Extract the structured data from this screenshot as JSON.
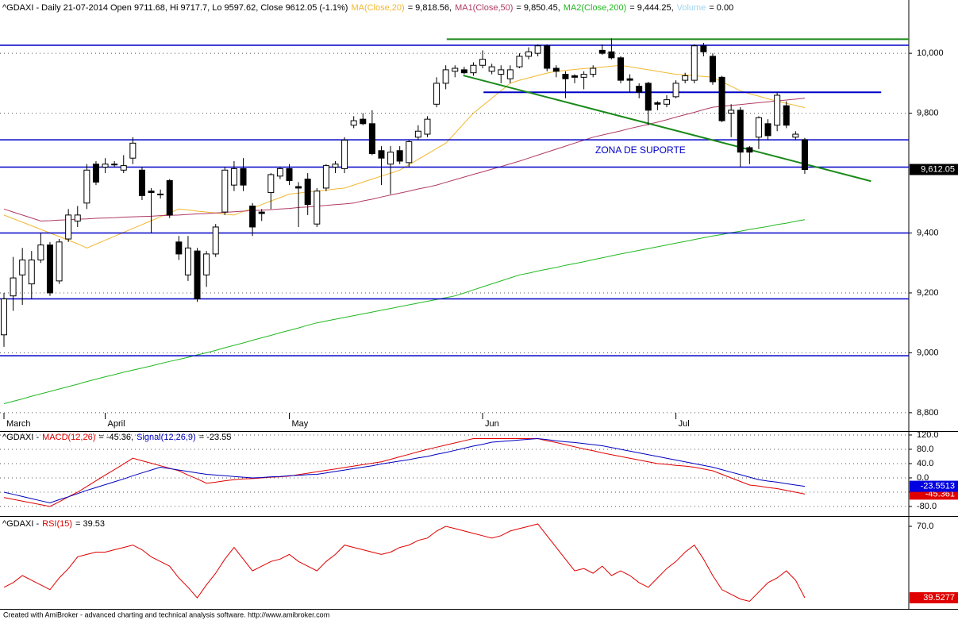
{
  "chart_data": [
    {
      "type": "candlestick",
      "title": "^GDAXI - Daily 21-07-2014 Open 9711.68, Hi 9717.7, Lo 9597.62, Close 9612.05 (-1.1%)",
      "categories": [
        "March",
        null,
        null,
        null,
        null,
        null,
        null,
        null,
        null,
        null,
        null,
        "April",
        null,
        null,
        null,
        null,
        null,
        null,
        null,
        null,
        null,
        null,
        null,
        null,
        null,
        null,
        null,
        null,
        null,
        null,
        null,
        "May",
        null,
        null,
        null,
        null,
        null,
        null,
        null,
        null,
        null,
        null,
        null,
        null,
        null,
        null,
        null,
        null,
        null,
        null,
        null,
        null,
        "Jun",
        null,
        null,
        null,
        null,
        null,
        null,
        null,
        null,
        null,
        null,
        null,
        null,
        null,
        null,
        null,
        null,
        null,
        null,
        null,
        null,
        "Jul",
        null,
        null,
        null,
        null,
        null,
        null,
        null,
        null,
        null,
        null,
        null,
        null,
        null,
        null
      ],
      "open": [
        9060,
        9190,
        9260,
        9230,
        9310,
        9360,
        9240,
        9380,
        9440,
        9500,
        9630,
        9620,
        9630,
        9610,
        9650,
        9610,
        9540,
        9530,
        9575,
        9370,
        9260,
        9340,
        9260,
        9330,
        9470,
        9560,
        9615,
        9490,
        9470,
        9535,
        9590,
        9615,
        9555,
        9580,
        9430,
        9550,
        9620,
        9615,
        9760,
        9780,
        9765,
        9675,
        9630,
        9675,
        9635,
        9720,
        9730,
        9830,
        9900,
        9940,
        9945,
        9935,
        9960,
        9940,
        9930,
        9915,
        9955,
        9990,
        10000,
        10025,
        9950,
        9930,
        9925,
        9920,
        9930,
        10010,
        10005,
        9985,
        9915,
        9890,
        9900,
        9835,
        9830,
        9855,
        9910,
        9910,
        10025,
        9990,
        9920,
        9800,
        9810,
        9685,
        9720,
        9765,
        9760,
        9825,
        9720,
        9711.68
      ],
      "high": [
        9200,
        9320,
        9350,
        9340,
        9400,
        9370,
        9380,
        9480,
        9490,
        9630,
        9640,
        9650,
        9640,
        9660,
        9720,
        9620,
        9550,
        9545,
        9580,
        9390,
        9390,
        9350,
        9340,
        9430,
        9620,
        9640,
        9650,
        9500,
        9480,
        9600,
        9620,
        9630,
        9570,
        9600,
        9550,
        9630,
        9640,
        9720,
        9790,
        9800,
        9810,
        9690,
        9690,
        9690,
        9710,
        9760,
        9790,
        9920,
        9960,
        9960,
        9955,
        9970,
        10010,
        9965,
        9960,
        9960,
        10000,
        10020,
        10030,
        10030,
        9960,
        9940,
        9930,
        9940,
        9960,
        10030,
        10050,
        9990,
        9930,
        9900,
        9905,
        9840,
        9860,
        9910,
        9935,
        10030,
        10035,
        10000,
        9925,
        9830,
        9820,
        9690,
        9790,
        9780,
        9870,
        9840,
        9740,
        9717.7
      ],
      "low": [
        9020,
        9140,
        9160,
        9180,
        9300,
        9190,
        9230,
        9370,
        9420,
        9480,
        9560,
        9600,
        9620,
        9600,
        9630,
        9510,
        9400,
        9515,
        9450,
        9310,
        9240,
        9170,
        9220,
        9320,
        9460,
        9540,
        9540,
        9390,
        9440,
        9480,
        9580,
        9560,
        9420,
        9460,
        9420,
        9540,
        9600,
        9600,
        9750,
        9760,
        9660,
        9560,
        9530,
        9630,
        9620,
        9710,
        9720,
        9820,
        9880,
        9920,
        9930,
        9925,
        9950,
        9930,
        9900,
        9900,
        9950,
        9980,
        9990,
        9940,
        9920,
        9850,
        9900,
        9880,
        9920,
        9995,
        9980,
        9900,
        9870,
        9850,
        9760,
        9810,
        9820,
        9850,
        9900,
        9900,
        9990,
        9895,
        9770,
        9720,
        9620,
        9630,
        9680,
        9710,
        9740,
        9750,
        9710,
        9597.62
      ],
      "close": [
        9180,
        9250,
        9310,
        9310,
        9360,
        9200,
        9370,
        9460,
        9460,
        9610,
        9570,
        9630,
        9630,
        9625,
        9700,
        9525,
        9535,
        9528,
        9460,
        9330,
        9350,
        9180,
        9330,
        9420,
        9610,
        9615,
        9560,
        9420,
        9465,
        9595,
        9615,
        9575,
        9550,
        9495,
        9540,
        9625,
        9630,
        9710,
        9775,
        9765,
        9665,
        9650,
        9670,
        9640,
        9705,
        9740,
        9780,
        9900,
        9945,
        9950,
        9935,
        9960,
        9980,
        9955,
        9945,
        9945,
        9990,
        10005,
        10025,
        9950,
        9940,
        9915,
        9920,
        9930,
        9950,
        10000,
        9985,
        9910,
        9910,
        9870,
        9810,
        9830,
        9845,
        9900,
        9925,
        10025,
        10005,
        9905,
        9775,
        9810,
        9670,
        9670,
        9785,
        9725,
        9860,
        9760,
        9730,
        9612.05
      ],
      "last_price": {
        "value": 9612.05,
        "label": "9,612.05"
      },
      "series": [
        {
          "name": "MA(Close,20)",
          "legend_label": "= 9,818.56,",
          "color": "#f2b830",
          "values": [
            9460,
            9448,
            9436,
            9424,
            9412,
            9400,
            9388,
            9376,
            9364,
            9350,
            9363,
            9376,
            9389,
            9402,
            9415,
            9428,
            9441,
            9454,
            9467,
            9480,
            9477,
            9473,
            9470,
            9467,
            9463,
            9460,
            9472,
            9483,
            9495,
            9507,
            9518,
            9530,
            9533,
            9537,
            9540,
            9543,
            9547,
            9550,
            9560,
            9570,
            9580,
            9590,
            9600,
            9610,
            9628,
            9646,
            9664,
            9682,
            9700,
            9733,
            9767,
            9800,
            9825,
            9850,
            9875,
            9900,
            9910,
            9918,
            9926,
            9934,
            9940,
            9943,
            9946,
            9949,
            9951,
            9954,
            9957,
            9960,
            9955,
            9950,
            9945,
            9940,
            9935,
            9930,
            9928,
            9925,
            9923,
            9920,
            9905,
            9890,
            9875,
            9865,
            9857,
            9848,
            9840,
            9833,
            9826,
            9818.56
          ]
        },
        {
          "name": "MA1(Close,50)",
          "legend_label": "= 9,850.45,",
          "color": "#b03a66",
          "values": [
            9480,
            9470,
            9460,
            9450,
            9440,
            9441,
            9443,
            9444,
            9446,
            9447,
            9449,
            9450,
            9451,
            9453,
            9454,
            9455,
            9456,
            9458,
            9459,
            9460,
            9462,
            9464,
            9465,
            9467,
            9469,
            9471,
            9473,
            9475,
            9476,
            9478,
            9480,
            9482,
            9485,
            9487,
            9490,
            9492,
            9495,
            9497,
            9500,
            9507,
            9513,
            9520,
            9527,
            9533,
            9540,
            9547,
            9553,
            9560,
            9569,
            9578,
            9587,
            9596,
            9604,
            9613,
            9622,
            9631,
            9640,
            9650,
            9660,
            9670,
            9680,
            9690,
            9700,
            9710,
            9720,
            9727,
            9734,
            9741,
            9749,
            9756,
            9763,
            9770,
            9778,
            9787,
            9795,
            9803,
            9812,
            9820,
            9823,
            9826,
            9829,
            9832,
            9835,
            9838,
            9841,
            9844,
            9847,
            9850.45
          ]
        },
        {
          "name": "MA2(Close,200)",
          "legend_label": "= 9,444.25,",
          "color": "#22b822",
          "values": [
            8830,
            8838,
            8846,
            8855,
            8863,
            8871,
            8879,
            8887,
            8895,
            8904,
            8912,
            8920,
            8927,
            8935,
            8942,
            8949,
            8956,
            8964,
            8971,
            8978,
            8985,
            8993,
            9000,
            9008,
            9017,
            9025,
            9033,
            9042,
            9050,
            9058,
            9067,
            9075,
            9083,
            9092,
            9100,
            9106,
            9112,
            9118,
            9124,
            9130,
            9136,
            9142,
            9148,
            9154,
            9160,
            9166,
            9172,
            9178,
            9184,
            9190,
            9200,
            9210,
            9220,
            9230,
            9240,
            9250,
            9260,
            9266,
            9273,
            9279,
            9285,
            9292,
            9298,
            9304,
            9311,
            9317,
            9324,
            9330,
            9336,
            9342,
            9348,
            9354,
            9360,
            9366,
            9372,
            9378,
            9384,
            9390,
            9395,
            9401,
            9406,
            9412,
            9417,
            9422,
            9428,
            9433,
            9439,
            9444.25
          ]
        }
      ],
      "volume_legend": {
        "name": "Volume",
        "legend_label": "= 0.00",
        "color": "#9fd6ef"
      },
      "xlim": [
        -0.43,
        98.3
      ],
      "ylim": [
        8789,
        10125
      ],
      "yticks": [
        {
          "value": 10000,
          "label": "10,000"
        },
        {
          "value": 9800,
          "label": "9,800"
        },
        {
          "value": 9400,
          "label": "9,400"
        },
        {
          "value": 9200,
          "label": "9,200"
        },
        {
          "value": 9000,
          "label": "9,000"
        },
        {
          "value": 8800,
          "label": "8,800"
        }
      ],
      "grid": true,
      "hlines": [
        {
          "value": 10027,
          "color": "#0000c8"
        },
        {
          "value": 9711,
          "color": "#0000c8"
        },
        {
          "value": 9620,
          "color": "#0000c8"
        },
        {
          "value": 9400,
          "color": "#0000c8"
        },
        {
          "value": 9180,
          "color": "#0000c8"
        },
        {
          "value": 8990,
          "color": "#0000c8"
        }
      ],
      "segments": [
        {
          "from": [
            48.1,
            10047
          ],
          "to": [
            98.3,
            10047
          ],
          "color": "#1a8a1a"
        },
        {
          "from": [
            52.1,
            9870
          ],
          "to": [
            95.3,
            9870
          ],
          "color": "#0000c8"
        },
        {
          "from": [
            49.9,
            9926
          ],
          "to": [
            94.2,
            9573
          ],
          "color": "#1a8a1a"
        }
      ],
      "annotation": "ZONA DE SUPORTE"
    },
    {
      "type": "macd",
      "title": "^GDAXI -",
      "series": [
        {
          "name": "MACD(12,26)",
          "legend_label": "= -45.36,",
          "color": "#e00000",
          "box_color": "#e00000",
          "values": [
            -55,
            -60,
            -65,
            -70,
            -75,
            -80,
            -67,
            -53,
            -40,
            -24,
            -8,
            8,
            23,
            39,
            55,
            48,
            41,
            34,
            27,
            20,
            8,
            -3,
            -15,
            -12,
            -8,
            -5,
            -3,
            -2,
            0,
            2,
            3,
            5,
            9,
            13,
            17,
            21,
            25,
            29,
            33,
            37,
            41,
            45,
            52,
            59,
            66,
            73,
            80,
            86,
            92,
            98,
            104,
            110,
            110,
            110,
            110,
            110,
            110,
            110,
            110,
            104,
            99,
            93,
            87,
            81,
            76,
            70,
            65,
            60,
            55,
            50,
            45,
            40,
            38,
            35,
            33,
            30,
            25,
            20,
            10,
            0,
            -10,
            -20,
            -23,
            -27,
            -30,
            -35,
            -40,
            -45.361
          ]
        },
        {
          "name": "Signal(12,26,9)",
          "legend_label": "= -23.55",
          "color": "#0000c0",
          "box_color": "#0000e0",
          "values": [
            -40,
            -46,
            -52,
            -58,
            -64,
            -70,
            -61,
            -53,
            -44,
            -35,
            -27,
            -19,
            -11,
            -3,
            6,
            14,
            22,
            30,
            26,
            22,
            18,
            14,
            10,
            8,
            6,
            4,
            2,
            0,
            1,
            3,
            4,
            6,
            7,
            9,
            10,
            14,
            18,
            22,
            26,
            30,
            34,
            39,
            43,
            47,
            51,
            56,
            60,
            66,
            71,
            77,
            83,
            89,
            94,
            100,
            102,
            104,
            106,
            108,
            110,
            107,
            104,
            101,
            99,
            96,
            93,
            90,
            85,
            80,
            75,
            70,
            65,
            60,
            55,
            50,
            45,
            40,
            35,
            30,
            23,
            16,
            9,
            2,
            -5,
            -9,
            -12,
            -16,
            -20,
            -23.5513
          ]
        }
      ],
      "xlim": [
        -0.43,
        98.3
      ],
      "ylim": [
        -95.6,
        131
      ],
      "yticks": [
        {
          "value": 120,
          "label": "120.0"
        },
        {
          "value": 80,
          "label": "80.0"
        },
        {
          "value": 40,
          "label": "40.0"
        },
        {
          "value": 0,
          "label": "0.0"
        },
        {
          "value": -40,
          "label": "-40.0"
        },
        {
          "value": -80,
          "label": "-80.0"
        }
      ],
      "grid": true
    },
    {
      "type": "rsi",
      "title": "^GDAXI -",
      "series": [
        {
          "name": "RSI(15)",
          "legend_label": "= 39.53",
          "color": "#e00000",
          "box_color": "#e00000",
          "values": [
            44,
            46,
            49,
            47,
            45,
            43,
            48,
            52,
            57,
            58,
            59,
            59,
            60,
            61,
            62,
            60,
            57,
            55,
            53,
            48,
            44,
            39.5,
            45,
            50,
            56,
            61,
            56,
            51,
            53,
            55,
            56,
            58,
            55,
            53,
            51,
            55,
            58,
            62,
            61,
            60,
            59,
            58,
            59,
            61,
            62,
            64,
            65,
            68,
            70,
            69,
            68,
            67,
            66,
            65,
            66,
            68,
            69,
            70,
            71,
            66,
            61,
            56,
            51,
            52,
            50,
            53,
            49,
            51,
            49,
            46,
            44,
            48,
            52,
            55,
            59,
            62,
            56,
            49,
            43,
            41,
            39,
            38,
            42,
            46,
            48,
            51,
            47,
            39.5277
          ]
        }
      ],
      "xlim": [
        -0.43,
        98.3
      ],
      "ylim": [
        35.13,
        73.72
      ],
      "yticks": [
        {
          "value": 70,
          "label": "70.0"
        }
      ],
      "grid": false
    }
  ],
  "footer": "Created with AmiBroker - advanced charting and technical analysis software. http://www.amibroker.com"
}
